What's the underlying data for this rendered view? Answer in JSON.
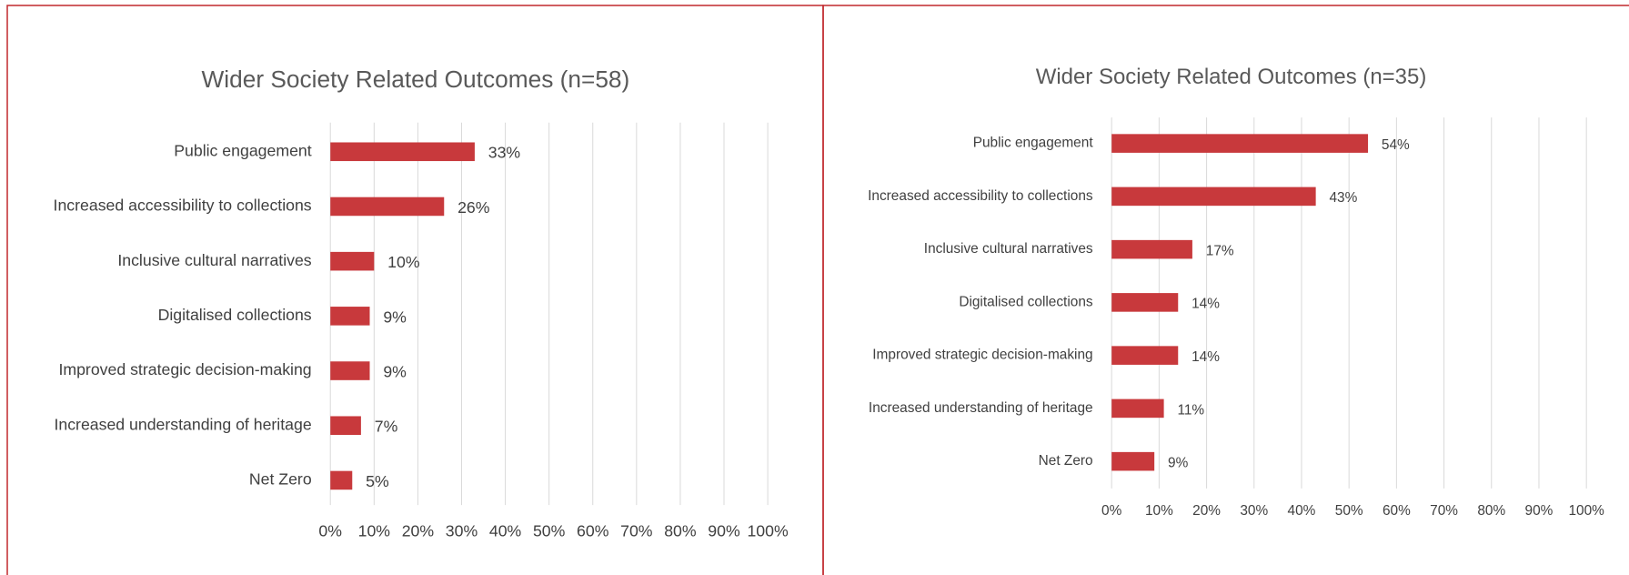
{
  "chart_data": [
    {
      "type": "bar",
      "orientation": "horizontal",
      "title": "Wider Society Related Outcomes (n=58)",
      "categories": [
        "Public engagement",
        "Increased accessibility to collections",
        "Inclusive cultural narratives",
        "Digitalised collections",
        "Improved strategic decision-making",
        "Increased understanding of heritage",
        "Net Zero"
      ],
      "values": [
        33,
        26,
        10,
        9,
        9,
        7,
        5
      ],
      "value_labels": [
        "33%",
        "26%",
        "10%",
        "9%",
        "9%",
        "7%",
        "5%"
      ],
      "color": "#c8393c",
      "xlim": [
        0,
        100
      ],
      "xticks": [
        {
          "value": 0,
          "label": "0%"
        },
        {
          "value": 10,
          "label": "10%"
        },
        {
          "value": 20,
          "label": "20%"
        },
        {
          "value": 30,
          "label": "30%"
        },
        {
          "value": 40,
          "label": "40%"
        },
        {
          "value": 50,
          "label": "50%"
        },
        {
          "value": 60,
          "label": "60%"
        },
        {
          "value": 70,
          "label": "70%"
        },
        {
          "value": 80,
          "label": "80%"
        },
        {
          "value": 90,
          "label": "90%"
        },
        {
          "value": 100,
          "label": "100%"
        }
      ],
      "grid": true
    },
    {
      "type": "bar",
      "orientation": "horizontal",
      "title": "Wider Society Related Outcomes (n=35)",
      "categories": [
        "Public engagement",
        "Increased accessibility to collections",
        "Inclusive cultural narratives",
        "Digitalised collections",
        "Improved strategic decision-making",
        "Increased understanding of heritage",
        "Net Zero"
      ],
      "values": [
        54,
        43,
        17,
        14,
        14,
        11,
        9
      ],
      "value_labels": [
        "54%",
        "43%",
        "17%",
        "14%",
        "14%",
        "11%",
        "9%"
      ],
      "color": "#c8393c",
      "xlim": [
        0,
        100
      ],
      "xticks": [
        {
          "value": 0,
          "label": "0%"
        },
        {
          "value": 10,
          "label": "10%"
        },
        {
          "value": 20,
          "label": "20%"
        },
        {
          "value": 30,
          "label": "30%"
        },
        {
          "value": 40,
          "label": "40%"
        },
        {
          "value": 50,
          "label": "50%"
        },
        {
          "value": 60,
          "label": "60%"
        },
        {
          "value": 70,
          "label": "70%"
        },
        {
          "value": 80,
          "label": "80%"
        },
        {
          "value": 90,
          "label": "90%"
        },
        {
          "value": 100,
          "label": "100%"
        }
      ],
      "grid": true
    }
  ]
}
